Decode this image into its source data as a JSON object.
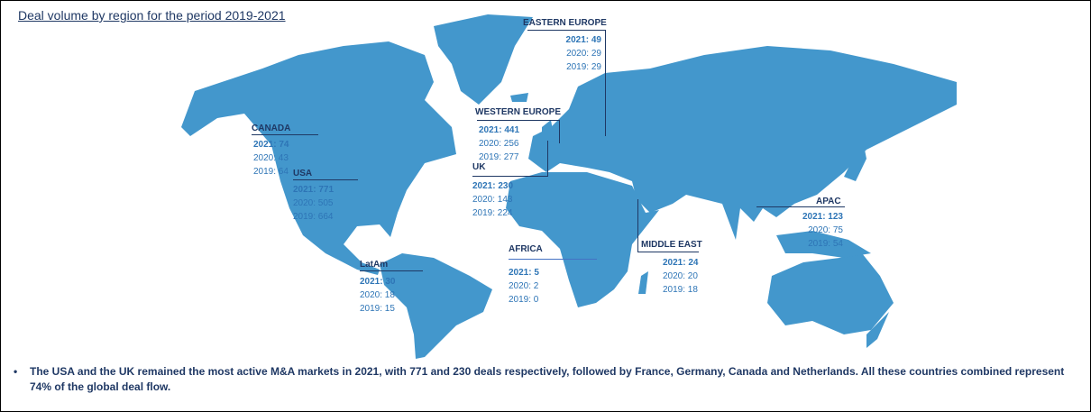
{
  "title": "Deal volume by region for the period 2019-2021",
  "colors": {
    "land": "#4397cc",
    "label": "#1f3864",
    "value": "#2e75b6"
  },
  "regions": [
    {
      "name": "CANADA",
      "y2021": "2021: 74",
      "y2020": "2020: 43",
      "y2019": "2019: 64"
    },
    {
      "name": "USA",
      "y2021": "2021: 771",
      "y2020": "2020: 505",
      "y2019": "2019: 664"
    },
    {
      "name": "LatAm",
      "y2021": "2021: 30",
      "y2020": "2020: 18",
      "y2019": "2019: 15"
    },
    {
      "name": "WESTERN EUROPE",
      "y2021": "2021: 441",
      "y2020": "2020: 256",
      "y2019": "2019: 277"
    },
    {
      "name": "UK",
      "y2021": "2021: 230",
      "y2020": "2020: 143",
      "y2019": "2019: 224"
    },
    {
      "name": "EASTERN EUROPE",
      "y2021": "2021: 49",
      "y2020": "2020: 29",
      "y2019": "2019: 29"
    },
    {
      "name": "AFRICA",
      "y2021": "2021: 5",
      "y2020": "2020: 2",
      "y2019": "2019: 0"
    },
    {
      "name": "MIDDLE EAST",
      "y2021": "2021: 24",
      "y2020": "2020: 20",
      "y2019": "2019: 18"
    },
    {
      "name": "APAC",
      "y2021": "2021: 123",
      "y2020": "2020: 75",
      "y2019": "2019: 54"
    }
  ],
  "note": {
    "bullet": "•",
    "text": "The USA and the UK remained the most active M&A markets in 2021, with 771 and 230 deals respectively, followed by France, Germany, Canada and Netherlands. All these countries combined represent 74% of the global deal flow."
  }
}
